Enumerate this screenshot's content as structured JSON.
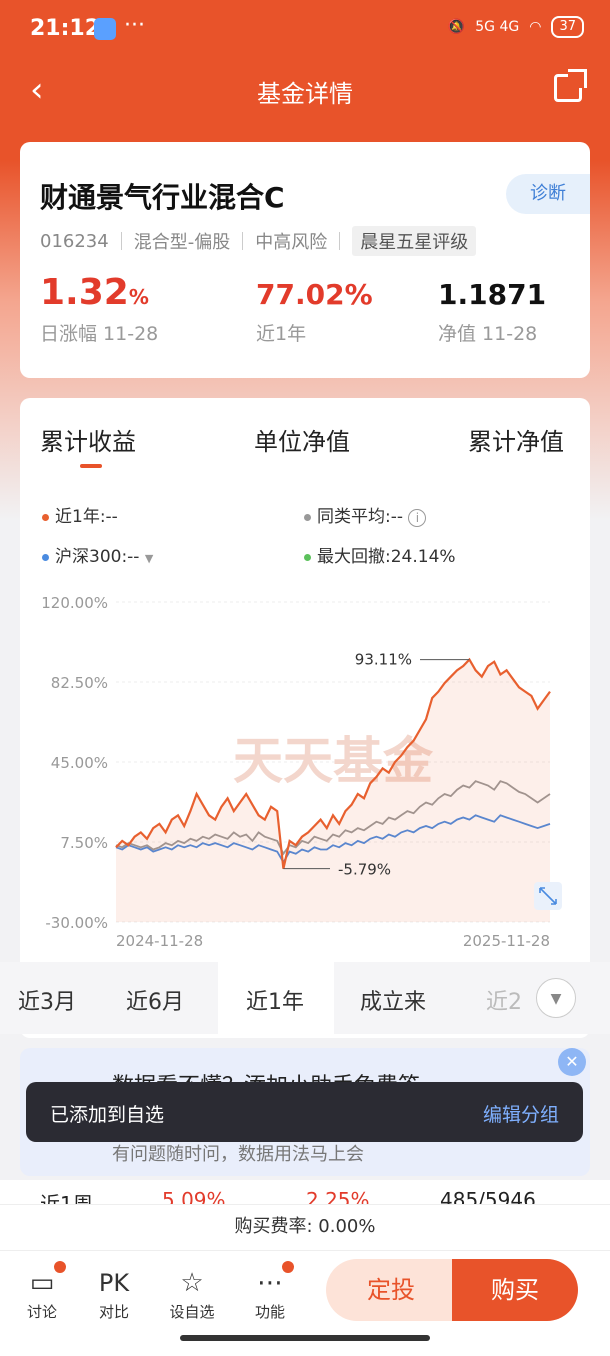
{
  "status_bar": {
    "time": "21:12",
    "dots": "···",
    "network": "5G 4G",
    "battery": "37"
  },
  "nav": {
    "title": "基金详情",
    "back": "‹"
  },
  "fund": {
    "name": "财通景气行业混合C",
    "diagnose": "诊断",
    "code": "016234",
    "type": "混合型-偏股",
    "risk": "中高风险",
    "rating": "晨星五星评级",
    "daily_change": "1.32",
    "daily_change_unit": "%",
    "daily_change_label": "日涨幅 11-28",
    "year_return": "77.02%",
    "year_return_label": "近1年",
    "nav_value": "1.1871",
    "nav_label": "净值 11-28"
  },
  "chart_tabs": [
    "累计收益",
    "单位净值",
    "累计净值"
  ],
  "legend": {
    "near_year": "近1年:--",
    "peer_avg": "同类平均:--",
    "hs300": "沪深300:--",
    "max_drawdown": "最大回撤:",
    "max_drawdown_value": "24.14%"
  },
  "colors": {
    "fund": "#e8602f",
    "peer": "#999999",
    "hs300": "#4a8be0",
    "drawdown": "#5cc15c",
    "accent": "#e8532a"
  },
  "chart_data": {
    "type": "line",
    "x_start": "2024-11-28",
    "x_end": "2025-11-28",
    "y_ticks": [
      "120.00%",
      "82.50%",
      "45.00%",
      "7.50%",
      "-30.00%"
    ],
    "ylim": [
      -30,
      120
    ],
    "annotations": {
      "peak": "93.11%",
      "trough": "-5.79%"
    },
    "watermark": "天天基金",
    "series": [
      {
        "color": "fund",
        "values": [
          5,
          8,
          6,
          10,
          12,
          9,
          14,
          16,
          12,
          18,
          20,
          15,
          22,
          30,
          25,
          20,
          18,
          24,
          28,
          22,
          26,
          30,
          25,
          20,
          18,
          24,
          22,
          -5,
          8,
          6,
          10,
          12,
          15,
          18,
          14,
          20,
          16,
          22,
          25,
          30,
          28,
          35,
          38,
          42,
          40,
          45,
          48,
          52,
          55,
          60,
          65,
          75,
          78,
          82,
          85,
          88,
          90,
          93,
          88,
          85,
          90,
          92,
          86,
          88,
          84,
          80,
          78,
          76,
          70,
          74,
          78
        ]
      },
      {
        "color": "peer",
        "values": [
          6,
          5,
          7,
          6,
          5,
          6,
          4,
          5,
          7,
          6,
          8,
          7,
          9,
          8,
          10,
          9,
          11,
          10,
          9,
          12,
          10,
          11,
          8,
          12,
          10,
          9,
          8,
          2,
          6,
          5,
          8,
          7,
          10,
          9,
          8,
          11,
          10,
          13,
          12,
          14,
          13,
          15,
          17,
          16,
          19,
          18,
          20,
          22,
          21,
          24,
          26,
          25,
          28,
          30,
          29,
          32,
          34,
          33,
          36,
          35,
          34,
          32,
          36,
          35,
          33,
          31,
          30,
          28,
          26,
          28,
          30
        ]
      },
      {
        "color": "hs300",
        "values": [
          5,
          4,
          6,
          5,
          4,
          5,
          3,
          4,
          5,
          4,
          6,
          5,
          6,
          5,
          7,
          6,
          7,
          6,
          5,
          7,
          6,
          5,
          4,
          6,
          5,
          4,
          3,
          -2,
          3,
          2,
          4,
          3,
          5,
          4,
          4,
          6,
          5,
          7,
          6,
          8,
          7,
          9,
          10,
          9,
          11,
          10,
          12,
          13,
          12,
          14,
          15,
          14,
          16,
          17,
          16,
          18,
          19,
          18,
          20,
          19,
          18,
          17,
          20,
          19,
          18,
          17,
          16,
          15,
          14,
          15,
          16
        ]
      }
    ]
  },
  "periods": [
    "近3月",
    "近6月",
    "近1年",
    "成立来",
    "近2"
  ],
  "active_period": "近1年",
  "promo": {
    "title": "数据看不懂？添加小助手免费答",
    "subtitle": "有问题随时问，数据用法马上会"
  },
  "toast": {
    "message": "已添加到自选",
    "action": "编辑分组"
  },
  "row_peek": {
    "label": "近1周",
    "v1": "5.09%",
    "v2": "2.25%",
    "rank": "485/5946"
  },
  "fee": "购买费率: 0.00%",
  "bottom": {
    "discuss": "讨论",
    "compare": "对比",
    "compare_icon": "PK",
    "watchlist": "设自选",
    "func": "功能",
    "dingtou": "定投",
    "buy": "购买"
  }
}
